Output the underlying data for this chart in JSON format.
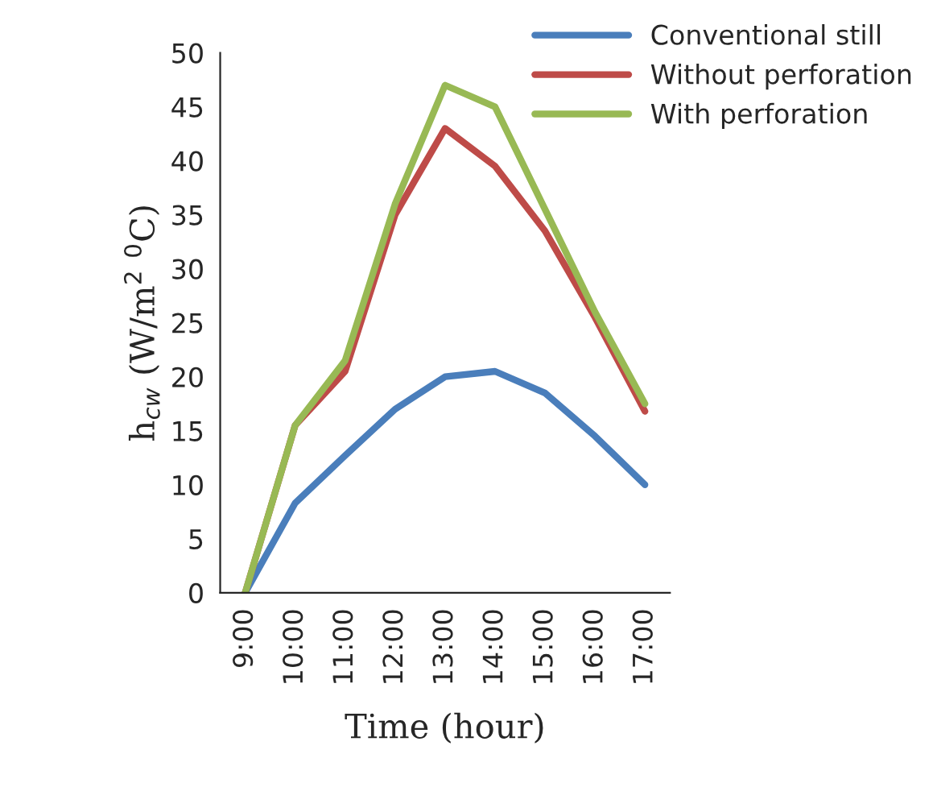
{
  "chart_data": {
    "type": "line",
    "xlabel": "Time (hour)",
    "ylabel": "h$_{cw}$ (W/m$^{2}$ $^{0}$C)",
    "categories": [
      "9:00",
      "10:00",
      "11:00",
      "12:00",
      "13:00",
      "14:00",
      "15:00",
      "16:00",
      "17:00"
    ],
    "series": [
      {
        "name": "Conventional still",
        "color": "#4a7ebb",
        "values": [
          0,
          8.3,
          12.7,
          17,
          20,
          20.5,
          18.5,
          14.5,
          10
        ]
      },
      {
        "name": "Without perforation",
        "color": "#be4b48",
        "values": [
          0,
          15.5,
          20.5,
          35,
          43,
          39.5,
          33.5,
          25.5,
          16.8
        ]
      },
      {
        "name": "With perforation",
        "color": "#98b954",
        "values": [
          0,
          15.5,
          21.5,
          36,
          47,
          45,
          35.5,
          26,
          17.5
        ]
      }
    ],
    "ylim": [
      0,
      50
    ],
    "yticks": [
      0,
      5,
      10,
      15,
      20,
      25,
      30,
      35,
      40,
      45,
      50
    ],
    "grid": false,
    "legend": "top right",
    "marker": "none",
    "line_style": "solid"
  }
}
